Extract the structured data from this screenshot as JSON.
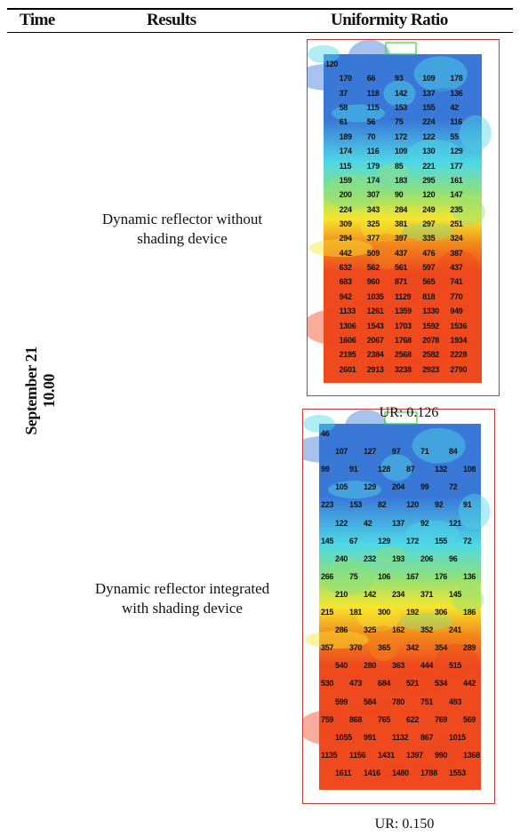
{
  "table": {
    "headers": [
      "Time",
      "Results",
      "Uniformity Ratio"
    ],
    "time": {
      "date": "September 21",
      "hour": "10.00"
    },
    "rows": [
      {
        "description": "Dynamic reflector without shading device",
        "ur": "UR: 0.126",
        "labels": [
          "120",
          "170",
          "66",
          "93",
          "109",
          "178",
          "37",
          "118",
          "142",
          "137",
          "136",
          "58",
          "115",
          "153",
          "155",
          "42",
          "61",
          "56",
          "75",
          "224",
          "116",
          "189",
          "70",
          "172",
          "122",
          "55",
          "174",
          "116",
          "109",
          "130",
          "129",
          "115",
          "179",
          "85",
          "221",
          "177",
          "159",
          "174",
          "183",
          "295",
          "161",
          "200",
          "307",
          "90",
          "120",
          "147",
          "224",
          "343",
          "284",
          "249",
          "235",
          "309",
          "325",
          "381",
          "297",
          "251",
          "294",
          "377",
          "397",
          "335",
          "324",
          "442",
          "509",
          "437",
          "476",
          "387",
          "632",
          "562",
          "561",
          "597",
          "437",
          "683",
          "960",
          "871",
          "565",
          "741",
          "942",
          "1035",
          "1129",
          "818",
          "770",
          "1133",
          "1261",
          "1359",
          "1330",
          "949",
          "1306",
          "1543",
          "1703",
          "1592",
          "1536",
          "1606",
          "2067",
          "1768",
          "2078",
          "1934",
          "2195",
          "2384",
          "2568",
          "2582",
          "2228",
          "2601",
          "2913",
          "3238",
          "2923",
          "2790"
        ]
      },
      {
        "description": "Dynamic reflector integrated with shading device",
        "ur": "UR: 0.150",
        "labels": [
          "46",
          "107",
          "127",
          "97",
          "71",
          "84",
          "99",
          "91",
          "128",
          "87",
          "132",
          "108",
          "105",
          "129",
          "204",
          "99",
          "72",
          "223",
          "153",
          "82",
          "120",
          "92",
          "91",
          "122",
          "42",
          "137",
          "92",
          "121",
          "145",
          "67",
          "129",
          "172",
          "155",
          "72",
          "240",
          "232",
          "193",
          "206",
          "96",
          "266",
          "75",
          "106",
          "167",
          "176",
          "136",
          "210",
          "142",
          "234",
          "371",
          "145",
          "215",
          "181",
          "300",
          "192",
          "306",
          "186",
          "286",
          "325",
          "162",
          "352",
          "241",
          "357",
          "370",
          "365",
          "342",
          "354",
          "289",
          "540",
          "280",
          "363",
          "444",
          "515",
          "530",
          "473",
          "684",
          "521",
          "534",
          "442",
          "599",
          "584",
          "780",
          "751",
          "493",
          "759",
          "868",
          "765",
          "622",
          "769",
          "569",
          "1055",
          "991",
          "1132",
          "867",
          "1015",
          "1135",
          "1156",
          "1431",
          "1397",
          "990",
          "1368",
          "1611",
          "1416",
          "1480",
          "1788",
          "1553",
          "1579",
          "1824",
          "2064",
          "2015",
          "1867",
          "1552",
          "2126",
          "2298",
          "2458",
          "2327",
          "2280"
        ]
      }
    ]
  },
  "colors": {
    "blue": "#3a78d8",
    "cyan": "#4fd8e6",
    "green": "#8fe07a",
    "yellow": "#f6e62e",
    "orange": "#f2861c",
    "red": "#ee4a1e",
    "frame": "#c23b3b",
    "window": "#3fcf3f"
  }
}
